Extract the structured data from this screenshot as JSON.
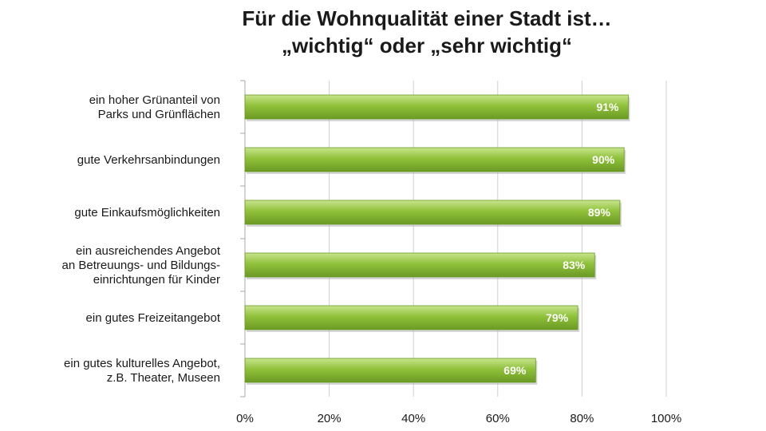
{
  "chart_data": {
    "type": "bar",
    "orientation": "horizontal",
    "title": [
      "Für die Wohnqualität einer Stadt ist…",
      "„wichtig“ oder „sehr wichtig“"
    ],
    "categories": [
      [
        "ein hoher Grünanteil von",
        "Parks und Grünflächen"
      ],
      [
        "gute Verkehrsanbindungen"
      ],
      [
        "gute Einkaufsmöglichkeiten"
      ],
      [
        "ein ausreichendes Angebot",
        "an Betreuungs- und Bildungs-",
        "einrichtungen für Kinder"
      ],
      [
        "ein gutes Freizeitangebot"
      ],
      [
        "ein gutes kulturelles Angebot,",
        "z.B. Theater, Museen"
      ]
    ],
    "values": [
      91,
      90,
      89,
      83,
      79,
      69
    ],
    "value_labels": [
      "91%",
      "90%",
      "89%",
      "83%",
      "79%",
      "69%"
    ],
    "xlim": [
      0,
      100
    ],
    "xticks": [
      0,
      20,
      40,
      60,
      80,
      100
    ],
    "xtick_labels": [
      "0%",
      "20%",
      "40%",
      "60%",
      "80%",
      "100%"
    ],
    "grid": true,
    "bar_color": "#8fc13a",
    "bar_color_light": "#c9e58e",
    "bar_color_dark": "#6a9a24",
    "grid_color": "#d0d0d0"
  }
}
